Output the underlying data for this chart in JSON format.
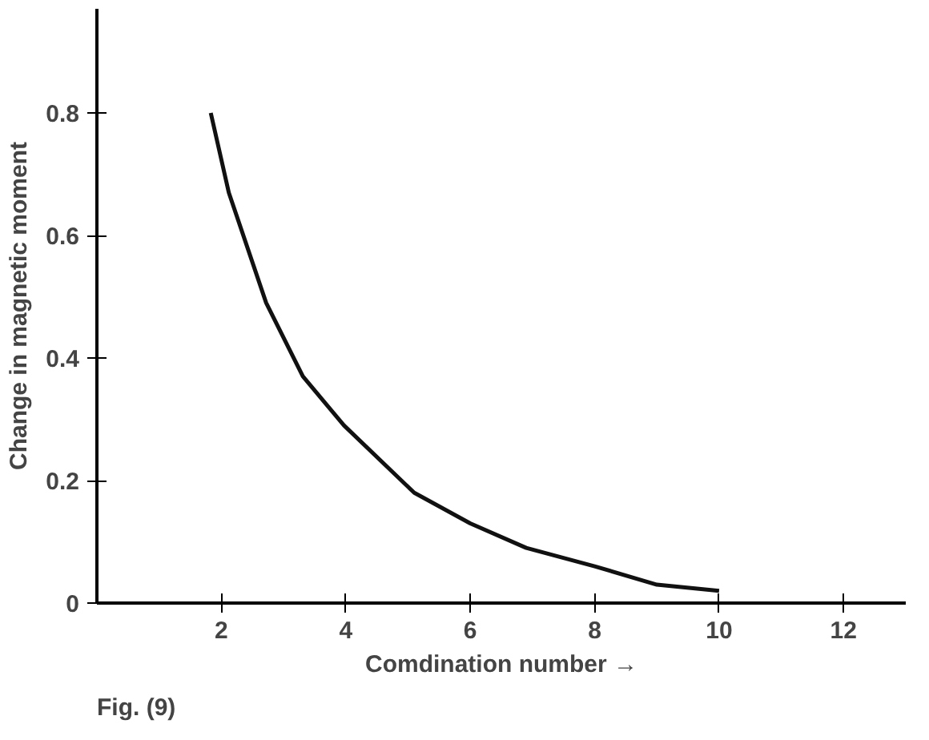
{
  "chart_data": {
    "type": "line",
    "xlabel": "Comdination number →",
    "ylabel": "Change in magnetic moment",
    "xlim": [
      0,
      13
    ],
    "ylim": [
      0,
      0.97
    ],
    "xticks": [
      2,
      4,
      6,
      8,
      10,
      12
    ],
    "yticks": [
      0,
      0.2,
      0.4,
      0.6,
      0.8
    ],
    "series": [
      {
        "color": "#111111",
        "x": [
          1.83,
          2.12,
          2.72,
          3.31,
          3.97,
          5.1,
          6,
          6.9,
          8,
          9,
          10
        ],
        "values": [
          0.8,
          0.67,
          0.49,
          0.37,
          0.29,
          0.18,
          0.13,
          0.09,
          0.06,
          0.03,
          0.02
        ]
      }
    ],
    "grid": false,
    "marker": "none",
    "line_style": "solid",
    "annotations": [
      "Fig. (9)"
    ]
  }
}
